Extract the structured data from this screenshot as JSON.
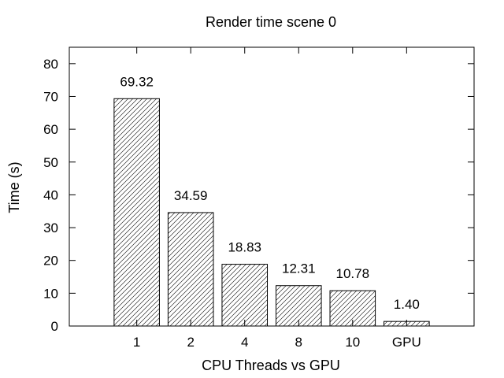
{
  "chart_data": {
    "type": "bar",
    "title": "Render time scene 0",
    "xlabel": "CPU Threads vs GPU",
    "ylabel": "Time (s)",
    "categories": [
      "1",
      "2",
      "4",
      "8",
      "10",
      "GPU"
    ],
    "values": [
      69.32,
      34.59,
      18.83,
      12.31,
      10.78,
      1.4
    ],
    "value_labels": [
      "69.32",
      "34.59",
      "18.83",
      "12.31",
      "10.78",
      "1.40"
    ],
    "ylim": [
      0,
      85
    ],
    "yticks": [
      0,
      10,
      20,
      30,
      40,
      50,
      60,
      70,
      80
    ],
    "grid": false,
    "legend": "none",
    "bar_fill": "diagonal-hatch",
    "colors": {
      "axis": "#000000",
      "bar_stroke": "#000000",
      "hatch": "#000000",
      "background": "#ffffff"
    }
  }
}
